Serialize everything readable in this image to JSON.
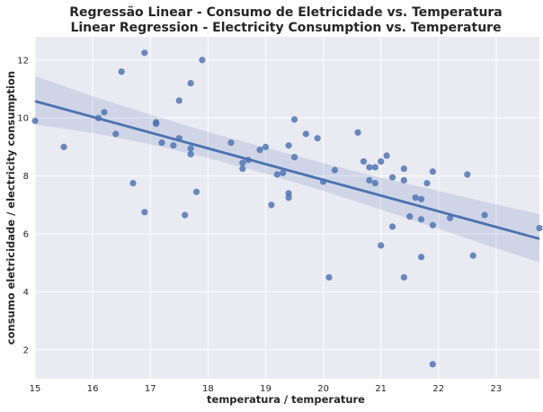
{
  "chart_data": {
    "type": "scatter",
    "title": "Regressão Linear - Consumo de Eletricidade vs. Temperatura",
    "subtitle": "Linear Regression - Electricity Consumption vs. Temperature",
    "xlabel": "temperatura / temperature",
    "ylabel": "consumo eletricidade / electricity consumption",
    "xlim": [
      15,
      23.75
    ],
    "ylim": [
      1,
      12.8
    ],
    "xticks": [
      15,
      16,
      17,
      18,
      19,
      20,
      21,
      22,
      23
    ],
    "yticks": [
      2,
      4,
      6,
      8,
      10,
      12
    ],
    "grid": true,
    "colors": {
      "background": "#eaeaf2",
      "grid": "#ffffff",
      "points": "#4c72b0",
      "line": "#4c72b0",
      "band": "#4c72b0"
    },
    "regression": {
      "x": [
        15,
        23.75
      ],
      "y": [
        10.58,
        5.83
      ]
    },
    "confidence_band": {
      "x": [
        15,
        16,
        17,
        18,
        19,
        20,
        21,
        22,
        23,
        23.75
      ],
      "lower": [
        9.78,
        9.48,
        9.1,
        8.62,
        8.08,
        7.48,
        6.84,
        6.18,
        5.5,
        5.02
      ],
      "upper": [
        11.45,
        10.75,
        10.12,
        9.52,
        8.98,
        8.44,
        7.94,
        7.48,
        7.02,
        6.68
      ]
    },
    "points": {
      "x": [
        15.0,
        15.5,
        16.1,
        16.2,
        16.4,
        16.5,
        16.7,
        16.9,
        16.9,
        17.1,
        17.1,
        17.2,
        17.4,
        17.5,
        17.5,
        17.6,
        17.7,
        17.7,
        17.7,
        17.8,
        17.9,
        18.4,
        18.6,
        18.6,
        18.7,
        18.9,
        19.0,
        19.1,
        19.2,
        19.3,
        19.4,
        19.4,
        19.4,
        19.5,
        19.5,
        19.7,
        19.9,
        20.0,
        20.1,
        20.2,
        20.6,
        20.7,
        20.8,
        20.8,
        20.9,
        20.9,
        21.0,
        21.0,
        21.1,
        21.2,
        21.2,
        21.4,
        21.4,
        21.4,
        21.5,
        21.6,
        21.7,
        21.7,
        21.7,
        21.8,
        21.9,
        21.9,
        21.9,
        22.2,
        22.5,
        22.6,
        22.8,
        23.75
      ],
      "y": [
        9.9,
        9.0,
        10.0,
        10.2,
        9.45,
        11.6,
        7.75,
        12.25,
        6.75,
        9.8,
        9.85,
        9.15,
        9.05,
        10.6,
        9.3,
        6.65,
        8.95,
        8.75,
        11.2,
        7.45,
        12.0,
        9.15,
        8.45,
        8.25,
        8.55,
        8.9,
        9.0,
        7.0,
        8.05,
        8.1,
        9.05,
        7.4,
        7.25,
        8.65,
        9.95,
        9.45,
        9.3,
        7.8,
        4.5,
        8.2,
        9.5,
        8.5,
        7.85,
        8.3,
        7.75,
        8.3,
        5.6,
        8.5,
        8.7,
        6.25,
        7.95,
        7.85,
        8.25,
        4.5,
        6.6,
        7.25,
        5.2,
        7.2,
        6.5,
        7.75,
        6.3,
        8.15,
        1.5,
        6.55,
        8.05,
        5.25,
        6.65,
        6.2
      ]
    }
  }
}
